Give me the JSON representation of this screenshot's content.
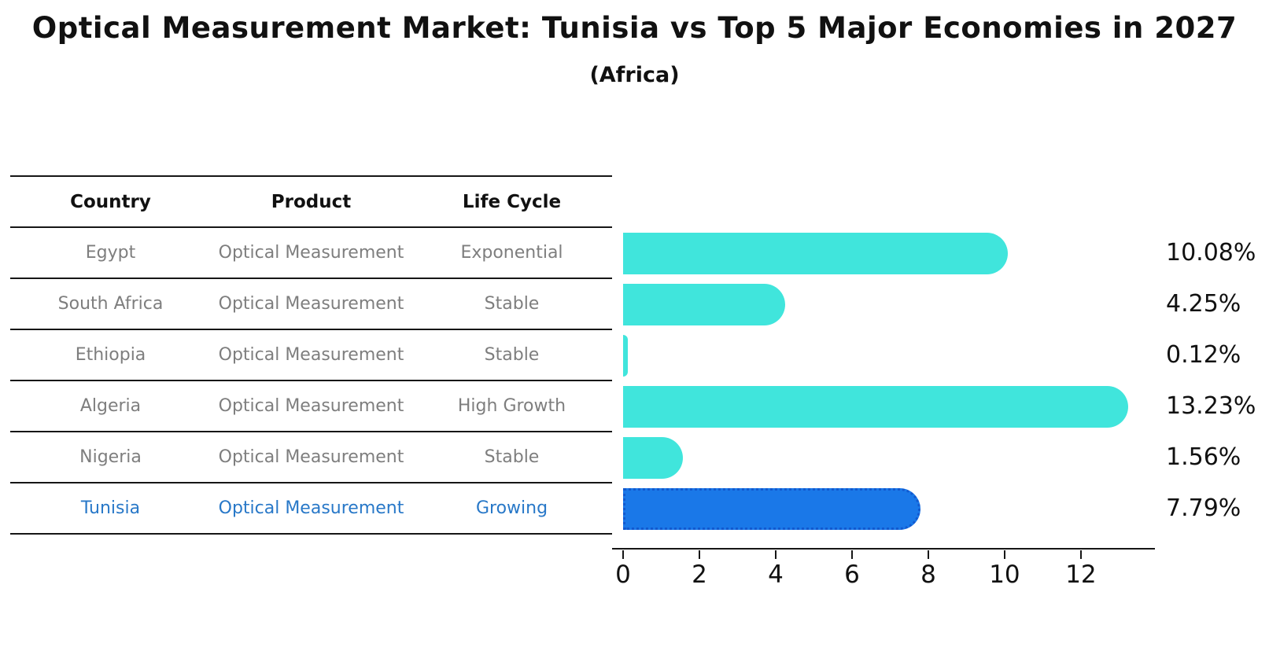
{
  "title": "Optical Measurement Market: Tunisia vs Top 5 Major Economies in 2027",
  "subtitle": "(Africa)",
  "table": {
    "headers": [
      "Country",
      "Product",
      "Life Cycle"
    ],
    "rows": [
      {
        "country": "Egypt",
        "product": "Optical Measurement",
        "life_cycle": "Exponential",
        "highlighted": false
      },
      {
        "country": "South Africa",
        "product": "Optical Measurement",
        "life_cycle": "Stable",
        "highlighted": false
      },
      {
        "country": "Ethiopia",
        "product": "Optical Measurement",
        "life_cycle": "Stable",
        "highlighted": false
      },
      {
        "country": "Algeria",
        "product": "Optical Measurement",
        "life_cycle": "High Growth",
        "highlighted": false
      },
      {
        "country": "Nigeria",
        "product": "Optical Measurement",
        "life_cycle": "Stable",
        "highlighted": false
      },
      {
        "country": "Tunisia",
        "product": "Optical Measurement",
        "life_cycle": "Growing",
        "highlighted": true
      }
    ]
  },
  "chart_data": {
    "type": "bar",
    "orientation": "horizontal",
    "categories": [
      "Egypt",
      "South Africa",
      "Ethiopia",
      "Algeria",
      "Nigeria",
      "Tunisia"
    ],
    "values": [
      10.08,
      4.25,
      0.12,
      13.23,
      1.56,
      7.79
    ],
    "labels": [
      "10.08%",
      "4.25%",
      "0.12%",
      "13.23%",
      "1.56%",
      "7.79%"
    ],
    "highlight_index": 5,
    "xlim": [
      0,
      13.94
    ],
    "xticks": [
      0,
      2,
      4,
      6,
      8,
      10,
      12
    ],
    "xtick_labels": [
      "0",
      "2",
      "4",
      "6",
      "8",
      "10",
      "12"
    ],
    "grid": false,
    "legend": "none"
  },
  "colors": {
    "bar": "#40e5dc",
    "highlight_bar": "#1a78e8",
    "highlight_border": "#1259cf",
    "highlight_text": "#2878c8",
    "muted_text": "#7e7e7e",
    "text": "#111111",
    "line": "#161616",
    "background": "#ffffff"
  }
}
